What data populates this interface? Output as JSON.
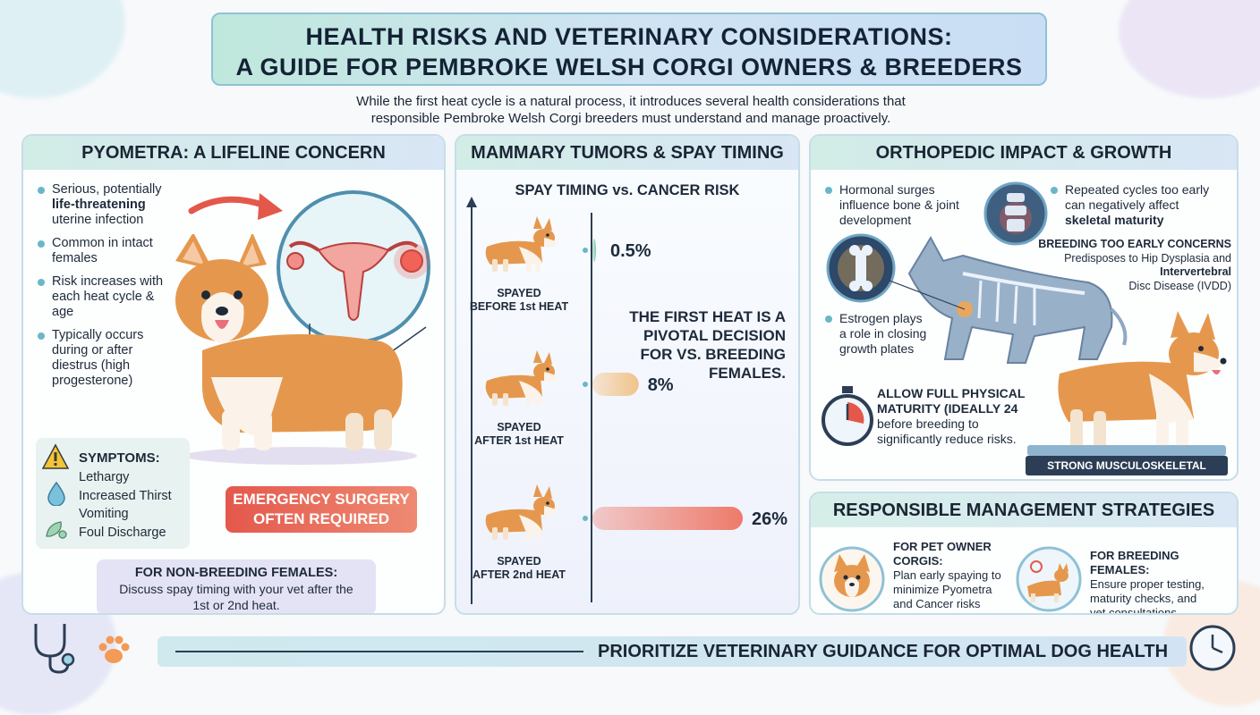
{
  "header": {
    "title_line1": "HEALTH RISKS AND VETERINARY CONSIDERATIONS:",
    "title_line2": "A GUIDE FOR PEMBROKE WELSH CORGI OWNERS & BREEDERS",
    "intro_line1": "While the first heat cycle is a natural process, it introduces several health considerations that",
    "intro_line2": "responsible Pembroke Welsh Corgi breeders must understand and manage proactively."
  },
  "pyometra": {
    "title": "PYOMETRA: A LIFELINE CONCERN",
    "bullets": [
      {
        "pre": "Serious, potentially",
        "bold": "life-threatening",
        "post": "uterine infection"
      },
      {
        "pre": "Common in intact females",
        "bold": "",
        "post": ""
      },
      {
        "pre": "Risk increases with each heat cycle & age",
        "bold": "",
        "post": ""
      },
      {
        "pre": "Typically occurs during or after diestrus (high progesterone)",
        "bold": "",
        "post": ""
      }
    ],
    "symptoms_title": "SYMPTOMS:",
    "symptoms": [
      "Lethargy",
      "Increased Thirst",
      "Vomiting",
      "Foul Discharge"
    ],
    "emergency_line1": "EMERGENCY SURGERY",
    "emergency_line2": "OFTEN REQUIRED",
    "nonbreeding_title": "FOR NON-BREEDING FEMALES:",
    "nonbreeding_line1": "Discuss spay timing with your vet after the",
    "nonbreeding_line2": "1st or 2nd heat."
  },
  "mammary": {
    "title": "MAMMARY TUMORS & SPAY TIMING",
    "chart_title": "SPAY TIMING vs. CANCER RISK",
    "statement_lines": [
      "THE FIRST HEAT IS A",
      "PIVOTAL DECISION",
      "FOR VS. BREEDING",
      "FEMALES."
    ]
  },
  "chart_data": {
    "type": "bar",
    "title": "SPAY TIMING vs. CANCER RISK",
    "categories": [
      "SPAYED BEFORE 1st HEAT",
      "SPAYED AFTER 1st HEAT",
      "SPAYED AFTER 2nd HEAT"
    ],
    "category_lines": [
      [
        "SPAYED",
        "BEFORE 1st HEAT"
      ],
      [
        "SPAYED",
        "AFTER 1st HEAT"
      ],
      [
        "SPAYED",
        "AFTER 2nd HEAT"
      ]
    ],
    "values": [
      0.5,
      8,
      26
    ],
    "value_labels": [
      "0.5%",
      "8%",
      "26%"
    ],
    "orientation": "horizontal",
    "xlim": [
      0,
      26
    ],
    "colors": [
      "#7fc9a9",
      "#f2c28a",
      "#ee7a6a"
    ]
  },
  "orthopedic": {
    "title": "ORTHOPEDIC IMPACT & GROWTH",
    "hormonal": [
      "Hormonal surges",
      "influence bone & joint",
      "development"
    ],
    "repeated": [
      "Repeated cycles too early",
      "can negatively affect"
    ],
    "repeated_bold": "skeletal maturity",
    "breeding_title": "BREEDING TOO EARLY CONCERNS",
    "breeding_line1": "Predisposes to Hip Dysplasia and",
    "breeding_line2": "Intervertebral",
    "breeding_line3": "Disc Disease (IVDD)",
    "estrogen": [
      "Estrogen plays",
      "a role in closing",
      "growth plates"
    ],
    "allow_bold1": "ALLOW FULL PHYSICAL",
    "allow_bold2": "MATURITY (IDEALLY 24",
    "allow_line3": "before breeding to",
    "allow_line4": "significantly reduce risks.",
    "badge": "STRONG MUSCULOSKELETAL HEALTH"
  },
  "management": {
    "title": "RESPONSIBLE MANAGEMENT STRATEGIES",
    "pet_title1": "FOR PET OWNER",
    "pet_title2": "CORGIS:",
    "pet_lines": [
      "Plan early spaying to",
      "minimize Pyometra",
      "and Cancer risks"
    ],
    "breed_title": "FOR BREEDING FEMALES:",
    "breed_lines": [
      "Ensure proper testing,",
      "maturity checks, and",
      "vet consultations"
    ]
  },
  "footer": {
    "text": "PRIORITIZE VETERINARY GUIDANCE FOR OPTIMAL DOG HEALTH"
  },
  "icons": [
    "stethoscope-icon",
    "paw-icon",
    "clock-icon",
    "warning-icon",
    "water-drop-icon",
    "leaf-icon",
    "stopwatch-icon",
    "bone-icon",
    "spine-icon",
    "uterus-icon"
  ],
  "colors": {
    "accent": "#6bb6c9",
    "alert": "#e4584c",
    "navy": "#2c3e55",
    "mint": "#bfe8dc"
  }
}
